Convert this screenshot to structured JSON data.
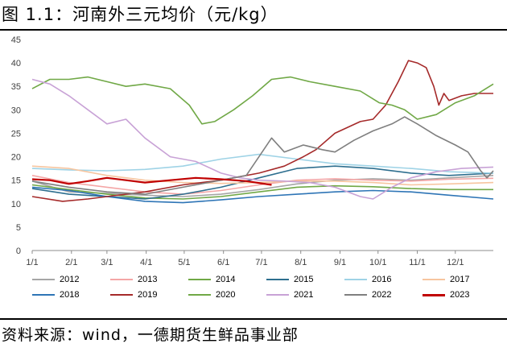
{
  "header": {
    "title": "图 1.1：河南外三元均价（元/kg）"
  },
  "footer": {
    "source": "资料来源：wind，一德期货生鲜品事业部"
  },
  "chart_data": {
    "type": "line",
    "xlabel": "",
    "ylabel": "",
    "ylim": [
      0,
      45
    ],
    "yticks": [
      0,
      5,
      10,
      15,
      20,
      25,
      30,
      35,
      40,
      45
    ],
    "x_range_days": [
      1,
      365
    ],
    "x_tick_labels": [
      "1/1",
      "2/1",
      "3/1",
      "4/1",
      "5/1",
      "6/1",
      "7/1",
      "8/1",
      "9/1",
      "10/1",
      "11/1",
      "12/1"
    ],
    "x_tick_days": [
      1,
      32,
      60,
      91,
      121,
      152,
      182,
      213,
      244,
      274,
      305,
      335
    ],
    "grid": false,
    "legend_position": "bottom",
    "series": [
      {
        "name": "2012",
        "color": "#a6a6a6",
        "points": [
          [
            1,
            14.8
          ],
          [
            30,
            12.5
          ],
          [
            60,
            12.2
          ],
          [
            90,
            11.8
          ],
          [
            120,
            11.5
          ],
          [
            150,
            12.0
          ],
          [
            180,
            13.0
          ],
          [
            210,
            14.2
          ],
          [
            240,
            15.0
          ],
          [
            270,
            15.3
          ],
          [
            300,
            15.0
          ],
          [
            330,
            15.5
          ],
          [
            365,
            16.0
          ]
        ]
      },
      {
        "name": "2013",
        "color": "#f4a6a6",
        "points": [
          [
            1,
            16.0
          ],
          [
            30,
            14.5
          ],
          [
            60,
            13.5
          ],
          [
            90,
            12.5
          ],
          [
            120,
            12.0
          ],
          [
            150,
            12.8
          ],
          [
            180,
            14.0
          ],
          [
            210,
            15.0
          ],
          [
            240,
            15.3
          ],
          [
            270,
            15.0
          ],
          [
            300,
            14.8
          ],
          [
            330,
            15.2
          ],
          [
            365,
            15.4
          ]
        ]
      },
      {
        "name": "2014",
        "color": "#70a846",
        "points": [
          [
            1,
            14.0
          ],
          [
            30,
            13.0
          ],
          [
            60,
            12.0
          ],
          [
            90,
            11.2
          ],
          [
            120,
            11.0
          ],
          [
            150,
            11.5
          ],
          [
            180,
            12.5
          ],
          [
            210,
            13.5
          ],
          [
            240,
            13.8
          ],
          [
            270,
            13.6
          ],
          [
            300,
            13.2
          ],
          [
            330,
            13.0
          ],
          [
            365,
            13.0
          ]
        ]
      },
      {
        "name": "2015",
        "color": "#2e6f8f",
        "points": [
          [
            1,
            13.2
          ],
          [
            30,
            12.0
          ],
          [
            60,
            11.5
          ],
          [
            90,
            11.0
          ],
          [
            120,
            12.0
          ],
          [
            150,
            13.5
          ],
          [
            180,
            15.5
          ],
          [
            210,
            17.5
          ],
          [
            240,
            18.0
          ],
          [
            270,
            17.5
          ],
          [
            300,
            16.5
          ],
          [
            330,
            16.0
          ],
          [
            365,
            16.5
          ]
        ]
      },
      {
        "name": "2016",
        "color": "#9fd3e6",
        "points": [
          [
            1,
            17.5
          ],
          [
            30,
            17.2
          ],
          [
            60,
            17.0
          ],
          [
            90,
            17.3
          ],
          [
            120,
            18.0
          ],
          [
            150,
            19.5
          ],
          [
            180,
            20.5
          ],
          [
            210,
            19.5
          ],
          [
            240,
            18.5
          ],
          [
            270,
            18.0
          ],
          [
            300,
            17.5
          ],
          [
            330,
            16.8
          ],
          [
            365,
            16.5
          ]
        ]
      },
      {
        "name": "2017",
        "color": "#f7c59f",
        "points": [
          [
            1,
            18.0
          ],
          [
            30,
            17.5
          ],
          [
            60,
            16.0
          ],
          [
            90,
            15.0
          ],
          [
            120,
            14.5
          ],
          [
            150,
            14.3
          ],
          [
            180,
            14.5
          ],
          [
            210,
            14.8
          ],
          [
            240,
            14.8
          ],
          [
            270,
            14.5
          ],
          [
            300,
            14.0
          ],
          [
            330,
            14.2
          ],
          [
            365,
            14.5
          ]
        ]
      },
      {
        "name": "2018",
        "color": "#2e75b6",
        "points": [
          [
            1,
            13.5
          ],
          [
            30,
            12.8
          ],
          [
            60,
            11.5
          ],
          [
            90,
            10.5
          ],
          [
            120,
            10.2
          ],
          [
            150,
            10.8
          ],
          [
            180,
            11.5
          ],
          [
            210,
            12.0
          ],
          [
            240,
            12.5
          ],
          [
            270,
            12.8
          ],
          [
            300,
            12.5
          ],
          [
            330,
            11.8
          ],
          [
            365,
            11.0
          ]
        ]
      },
      {
        "name": "2019",
        "color": "#a52a2a",
        "points": [
          [
            1,
            11.5
          ],
          [
            25,
            10.5
          ],
          [
            45,
            11.0
          ],
          [
            60,
            11.5
          ],
          [
            90,
            12.5
          ],
          [
            120,
            14.0
          ],
          [
            150,
            15.0
          ],
          [
            180,
            16.5
          ],
          [
            200,
            18.0
          ],
          [
            215,
            20.0
          ],
          [
            225,
            21.5
          ],
          [
            240,
            25.0
          ],
          [
            260,
            27.5
          ],
          [
            270,
            28.0
          ],
          [
            280,
            31.0
          ],
          [
            290,
            36.0
          ],
          [
            298,
            40.5
          ],
          [
            305,
            40.0
          ],
          [
            312,
            39.0
          ],
          [
            318,
            35.0
          ],
          [
            322,
            31.0
          ],
          [
            326,
            33.5
          ],
          [
            330,
            32.0
          ],
          [
            340,
            33.0
          ],
          [
            350,
            33.5
          ],
          [
            365,
            33.5
          ]
        ]
      },
      {
        "name": "2020",
        "color": "#70a846",
        "points": [
          [
            1,
            34.5
          ],
          [
            15,
            36.5
          ],
          [
            30,
            36.5
          ],
          [
            45,
            37.0
          ],
          [
            60,
            36.0
          ],
          [
            75,
            35.0
          ],
          [
            90,
            35.5
          ],
          [
            110,
            34.5
          ],
          [
            125,
            31.0
          ],
          [
            135,
            27.0
          ],
          [
            145,
            27.5
          ],
          [
            160,
            30.0
          ],
          [
            175,
            33.0
          ],
          [
            190,
            36.5
          ],
          [
            205,
            37.0
          ],
          [
            220,
            36.0
          ],
          [
            240,
            35.0
          ],
          [
            260,
            34.0
          ],
          [
            275,
            31.5
          ],
          [
            285,
            31.0
          ],
          [
            295,
            30.0
          ],
          [
            305,
            28.0
          ],
          [
            320,
            29.0
          ],
          [
            335,
            31.5
          ],
          [
            350,
            33.0
          ],
          [
            365,
            35.5
          ]
        ]
      },
      {
        "name": "2021",
        "color": "#c8a2d6",
        "points": [
          [
            1,
            36.5
          ],
          [
            15,
            35.5
          ],
          [
            30,
            33.0
          ],
          [
            45,
            30.0
          ],
          [
            60,
            27.0
          ],
          [
            75,
            28.0
          ],
          [
            90,
            24.0
          ],
          [
            110,
            20.0
          ],
          [
            130,
            19.0
          ],
          [
            150,
            16.5
          ],
          [
            165,
            15.5
          ],
          [
            180,
            15.0
          ],
          [
            200,
            14.8
          ],
          [
            220,
            14.5
          ],
          [
            240,
            13.5
          ],
          [
            260,
            11.5
          ],
          [
            270,
            11.0
          ],
          [
            285,
            13.5
          ],
          [
            300,
            15.5
          ],
          [
            320,
            16.8
          ],
          [
            340,
            17.5
          ],
          [
            365,
            17.8
          ]
        ]
      },
      {
        "name": "2022",
        "color": "#7f7f7f",
        "points": [
          [
            1,
            14.8
          ],
          [
            30,
            13.5
          ],
          [
            60,
            12.5
          ],
          [
            90,
            12.0
          ],
          [
            120,
            13.5
          ],
          [
            150,
            15.0
          ],
          [
            170,
            16.0
          ],
          [
            180,
            20.0
          ],
          [
            190,
            24.0
          ],
          [
            200,
            21.0
          ],
          [
            215,
            22.5
          ],
          [
            230,
            21.5
          ],
          [
            240,
            21.0
          ],
          [
            255,
            23.5
          ],
          [
            270,
            25.5
          ],
          [
            285,
            27.0
          ],
          [
            295,
            28.5
          ],
          [
            305,
            27.0
          ],
          [
            320,
            24.5
          ],
          [
            335,
            22.5
          ],
          [
            345,
            21.0
          ],
          [
            355,
            17.0
          ],
          [
            360,
            15.5
          ],
          [
            365,
            17.0
          ]
        ]
      },
      {
        "name": "2023",
        "color": "#c00000",
        "thick": true,
        "points": [
          [
            1,
            15.2
          ],
          [
            15,
            15.0
          ],
          [
            30,
            14.2
          ],
          [
            45,
            14.8
          ],
          [
            60,
            15.5
          ],
          [
            75,
            15.0
          ],
          [
            90,
            14.5
          ],
          [
            110,
            15.0
          ],
          [
            130,
            15.5
          ],
          [
            150,
            15.2
          ],
          [
            170,
            14.8
          ],
          [
            190,
            14.0
          ]
        ]
      }
    ],
    "legend_layout": [
      [
        "2012",
        "2013",
        "2014",
        "2015",
        "2016",
        "2017"
      ],
      [
        "2018",
        "2019",
        "2020",
        "2021",
        "2022",
        "2023"
      ]
    ]
  }
}
